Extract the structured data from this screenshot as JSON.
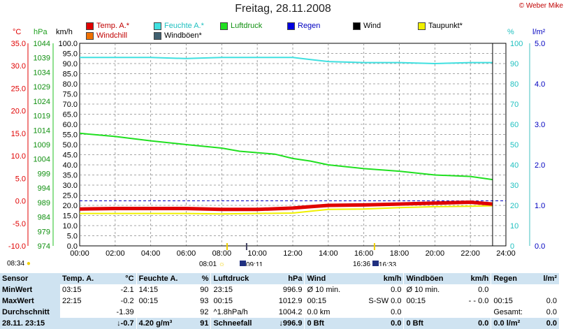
{
  "title": "Freitag, 28.11.2008",
  "copyright": "© Weber Mike",
  "axis_units": {
    "temp": "°C",
    "pressure": "hPa",
    "wind": "km/h",
    "humidity": "%",
    "rain": "l/m²"
  },
  "legend": [
    {
      "label": "Temp. A.*",
      "color": "#e00000"
    },
    {
      "label": "Feuchte A.*",
      "color": "#40e0e0"
    },
    {
      "label": "Luftdruck",
      "color": "#20e020"
    },
    {
      "label": "Regen",
      "color": "#0000e0"
    },
    {
      "label": "Wind",
      "color": "#000000"
    },
    {
      "label": "Taupunkt*",
      "color": "#f0f000"
    },
    {
      "label": "Windchill",
      "color": "#f07000"
    },
    {
      "label": "Windböen*",
      "color": "#406070"
    }
  ],
  "sun_events": {
    "sunrise_left": "08:34",
    "sunrise_center": "08:01",
    "moon_set": "09:11",
    "sunset_center": "16:36",
    "moon_rise": "16:33"
  },
  "chart_data": {
    "type": "line",
    "x_ticks": [
      "00:00",
      "02:00",
      "04:00",
      "06:00",
      "08:00",
      "10:00",
      "12:00",
      "14:00",
      "16:00",
      "18:00",
      "20:00",
      "22:00",
      "24:00"
    ],
    "temp_ticks": [
      "35.0",
      "30.0",
      "25.0",
      "20.0",
      "15.0",
      "10.0",
      "5.0",
      "0.0",
      "-5.0",
      "-10.0"
    ],
    "pressure_ticks": [
      "1044",
      "1039",
      "1034",
      "1029",
      "1024",
      "1019",
      "1014",
      "1009",
      "1004",
      "999",
      "994",
      "989",
      "984",
      "979",
      "974"
    ],
    "wind_ticks": [
      "100.0",
      "95.0",
      "90.0",
      "85.0",
      "80.0",
      "75.0",
      "70.0",
      "65.0",
      "60.0",
      "55.0",
      "50.0",
      "45.0",
      "40.0",
      "35.0",
      "30.0",
      "25.0",
      "20.0",
      "15.0",
      "10.0",
      "5.0",
      "0.0"
    ],
    "humidity_ticks": [
      "100",
      "90",
      "80",
      "70",
      "60",
      "50",
      "40",
      "30",
      "20",
      "10",
      "0"
    ],
    "rain_ticks": [
      "5.0",
      "4.0",
      "3.0",
      "2.0",
      "1.0",
      "0.0"
    ],
    "series": [
      {
        "name": "Feuchte A.*",
        "axis": "humidity",
        "color": "#40e0e0",
        "x": [
          0,
          2,
          4,
          6,
          8,
          10,
          12,
          13,
          14,
          16,
          18,
          20,
          22,
          23.25
        ],
        "y": [
          93,
          93,
          93,
          92.5,
          93,
          93,
          93,
          92,
          91,
          90.5,
          90.5,
          90,
          90.5,
          90.5
        ]
      },
      {
        "name": "Luftdruck",
        "axis": "pressure",
        "color": "#20e020",
        "x": [
          0,
          2,
          4,
          6,
          8,
          9,
          11,
          12,
          13,
          14,
          16,
          18,
          20,
          22,
          23.25
        ],
        "y": [
          1012.9,
          1011.8,
          1010.3,
          1009,
          1007.8,
          1006.7,
          1005.7,
          1004.2,
          1003.3,
          1002.0,
          1000.7,
          999.8,
          998.5,
          998.0,
          996.9
        ]
      },
      {
        "name": "Taupunkt*",
        "axis": "temp",
        "color": "#f0f000",
        "x": [
          0,
          2,
          4,
          6,
          8,
          10,
          12,
          14,
          16,
          18,
          20,
          22,
          23.25
        ],
        "y": [
          -2.8,
          -2.8,
          -2.8,
          -2.8,
          -2.9,
          -2.8,
          -2.7,
          -1.9,
          -1.8,
          -1.5,
          -1.3,
          -1.2,
          -1.1
        ]
      },
      {
        "name": "Temp. A.*",
        "axis": "temp",
        "color": "#e00000",
        "x": [
          0,
          2,
          4,
          6,
          8,
          10,
          12,
          13,
          14,
          16,
          18,
          20,
          22,
          23.25
        ],
        "y": [
          -1.8,
          -1.7,
          -1.7,
          -1.7,
          -1.9,
          -1.9,
          -1.6,
          -1.3,
          -1.0,
          -0.9,
          -0.7,
          -0.5,
          -0.3,
          -0.7
        ]
      }
    ],
    "reference_line": {
      "axis": "temp",
      "y": 0.0,
      "color": "#0000c0"
    }
  },
  "stats": {
    "headers": {
      "sensor": "Sensor",
      "temp": "Temp. A.",
      "temp_unit": "°C",
      "hum": "Feuchte A.",
      "hum_unit": "%",
      "press": "Luftdruck",
      "press_unit": "hPa",
      "wind": "Wind",
      "wind_unit": "km/h",
      "gust": "Windböen",
      "gust_unit": "km/h",
      "rain": "Regen",
      "rain_unit": "l/m²"
    },
    "rows": [
      {
        "label": "MinWert",
        "t_time": "03:15",
        "t_val": "-2.1",
        "h_time": "14:15",
        "h_val": "90",
        "p_time": "23:15",
        "p_val": "996.9",
        "w_label": "Ø 10 min.",
        "w_val": "0.0",
        "g_label": "Ø 10 min.",
        "g_val": "0.0",
        "r_label": "",
        "r_val": ""
      },
      {
        "label": "MaxWert",
        "t_time": "22:15",
        "t_val": "-0.2",
        "h_time": "00:15",
        "h_val": "93",
        "p_time": "00:15",
        "p_val": "1012.9",
        "w_label": "00:15",
        "w_val": "S-SW 0.0",
        "g_label": "00:15",
        "g_val": "- - 0.0",
        "r_label": "00:15",
        "r_val": "0.0"
      },
      {
        "label": "Durchschnitt",
        "t_time": "",
        "t_val": "-1.39",
        "h_time": "",
        "h_val": "92",
        "p_time": "^1.8hPa/h",
        "p_val": "1004.2",
        "w_label": "0.0 km",
        "w_val": "0.0",
        "g_label": "",
        "g_val": "",
        "r_label": "Gesamt:",
        "r_val": "0.0"
      },
      {
        "label": "28.11.  23:15",
        "t_time": "",
        "t_val": "↓-0.7",
        "h_time": "4.20 g/m³",
        "h_val": "91",
        "p_time": "Schneefall",
        "p_val": "↓996.9",
        "w_label": "0 Bft",
        "w_val": "0.0",
        "g_label": "0 Bft",
        "g_val": "0.0",
        "r_label": "0.0 l/m²",
        "r_val": "0.0"
      }
    ]
  }
}
